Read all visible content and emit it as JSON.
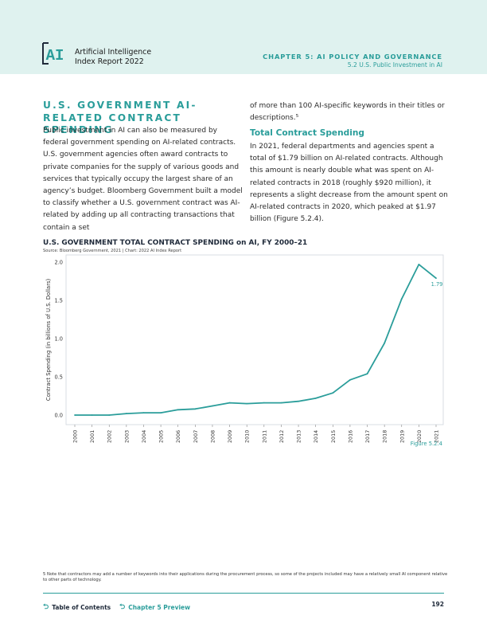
{
  "header": {
    "logo_text": "AI",
    "report_title_line1": "Artificial Intelligence",
    "report_title_line2": "Index Report 2022",
    "chapter": "CHAPTER 5: AI POLICY AND GOVERNANCE",
    "section": "5.2 U.S. Public Investment in AI"
  },
  "left_column": {
    "heading": "U.S. GOVERNMENT AI-RELATED CONTRACT SPENDING",
    "paragraph": "Public investment in AI can also be measured by federal government spending on AI-related contracts. U.S. government agencies often award contracts to private companies for the supply of various goods and services that typically occupy the largest share of an agency’s budget. Bloomberg Government built a model to classify whether a U.S. government contract was AI-related by adding up all contracting transactions that contain a set"
  },
  "right_column": {
    "continuation": "of more than 100 AI-specific keywords in their titles or descriptions.⁵",
    "subheading": "Total Contract Spending",
    "paragraph": "In 2021, federal departments and agencies spent a total of $1.79 billion on AI-related contracts. Although this amount is nearly double what was spent on AI-related contracts in 2018 (roughly $920 million), it represents a slight decrease from the amount spent on AI-related contracts in 2020, which peaked at $1.97 billion (Figure 5.2.4)."
  },
  "chart_data": {
    "type": "line",
    "title": "U.S. GOVERNMENT TOTAL CONTRACT SPENDING on AI, FY 2000–21",
    "subtitle": "Source: Bloomberg Government, 2021 | Chart: 2022 AI Index Report",
    "xlabel": "",
    "ylabel": "Contract Spending (in billions of U.S. Dollars)",
    "x": [
      "2000",
      "2001",
      "2002",
      "2003",
      "2004",
      "2005",
      "2006",
      "2007",
      "2008",
      "2009",
      "2010",
      "2011",
      "2012",
      "2013",
      "2014",
      "2015",
      "2016",
      "2017",
      "2018",
      "2019",
      "2020",
      "2021"
    ],
    "series": [
      {
        "values": [
          0.0,
          0.0,
          0.0,
          0.02,
          0.03,
          0.03,
          0.07,
          0.08,
          0.12,
          0.16,
          0.15,
          0.16,
          0.16,
          0.18,
          0.22,
          0.29,
          0.46,
          0.54,
          0.94,
          1.52,
          1.97,
          1.79
        ],
        "color": "#2a9d9a"
      }
    ],
    "end_label": "1.79",
    "ylim": [
      0,
      2.0
    ],
    "yticks": [
      "0.0",
      "0.5",
      "1.0",
      "1.5",
      "2.0"
    ],
    "grid": false
  },
  "figure_label": "Figure 5.2.4",
  "footnote": "5 Note that contractors may add a number of keywords into their applications during the procurement process, so some of the projects included may have a relatively small AI component relative to other parts of technology.",
  "footer": {
    "toc_label": "Table of Contents",
    "preview_label": "Chapter 5 Preview",
    "arrow_glyph": "⮌",
    "page_number": "192"
  },
  "colors": {
    "accent": "#2a9d9a",
    "header_bg": "#dff2ef",
    "navy": "#1f2a3a"
  }
}
